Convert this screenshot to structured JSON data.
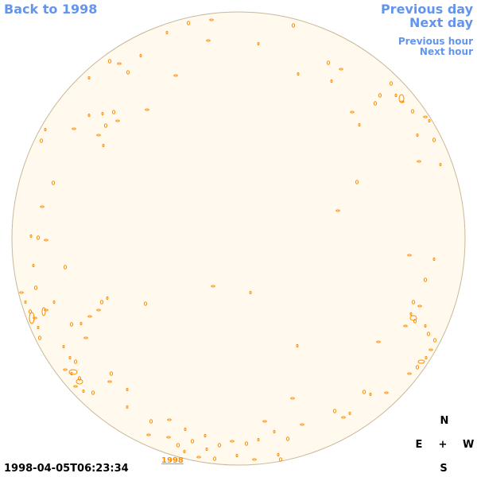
{
  "nav": {
    "back_label": "Back to 1998",
    "previous_day_label": "Previous day",
    "next_day_label": "Next day",
    "previous_hour_label": "Previous hour",
    "next_hour_label": "Next hour"
  },
  "timestamp": "1998-04-05T06:23:34",
  "year_link": "1998",
  "compass": {
    "north": "N",
    "east": "E",
    "center": "+",
    "west": "W",
    "south": "S"
  },
  "colors": {
    "disk_fill": "#fffaed",
    "disk_stroke": "#c8b89a",
    "contour": "#ff8c00",
    "link": "#6495ed"
  }
}
